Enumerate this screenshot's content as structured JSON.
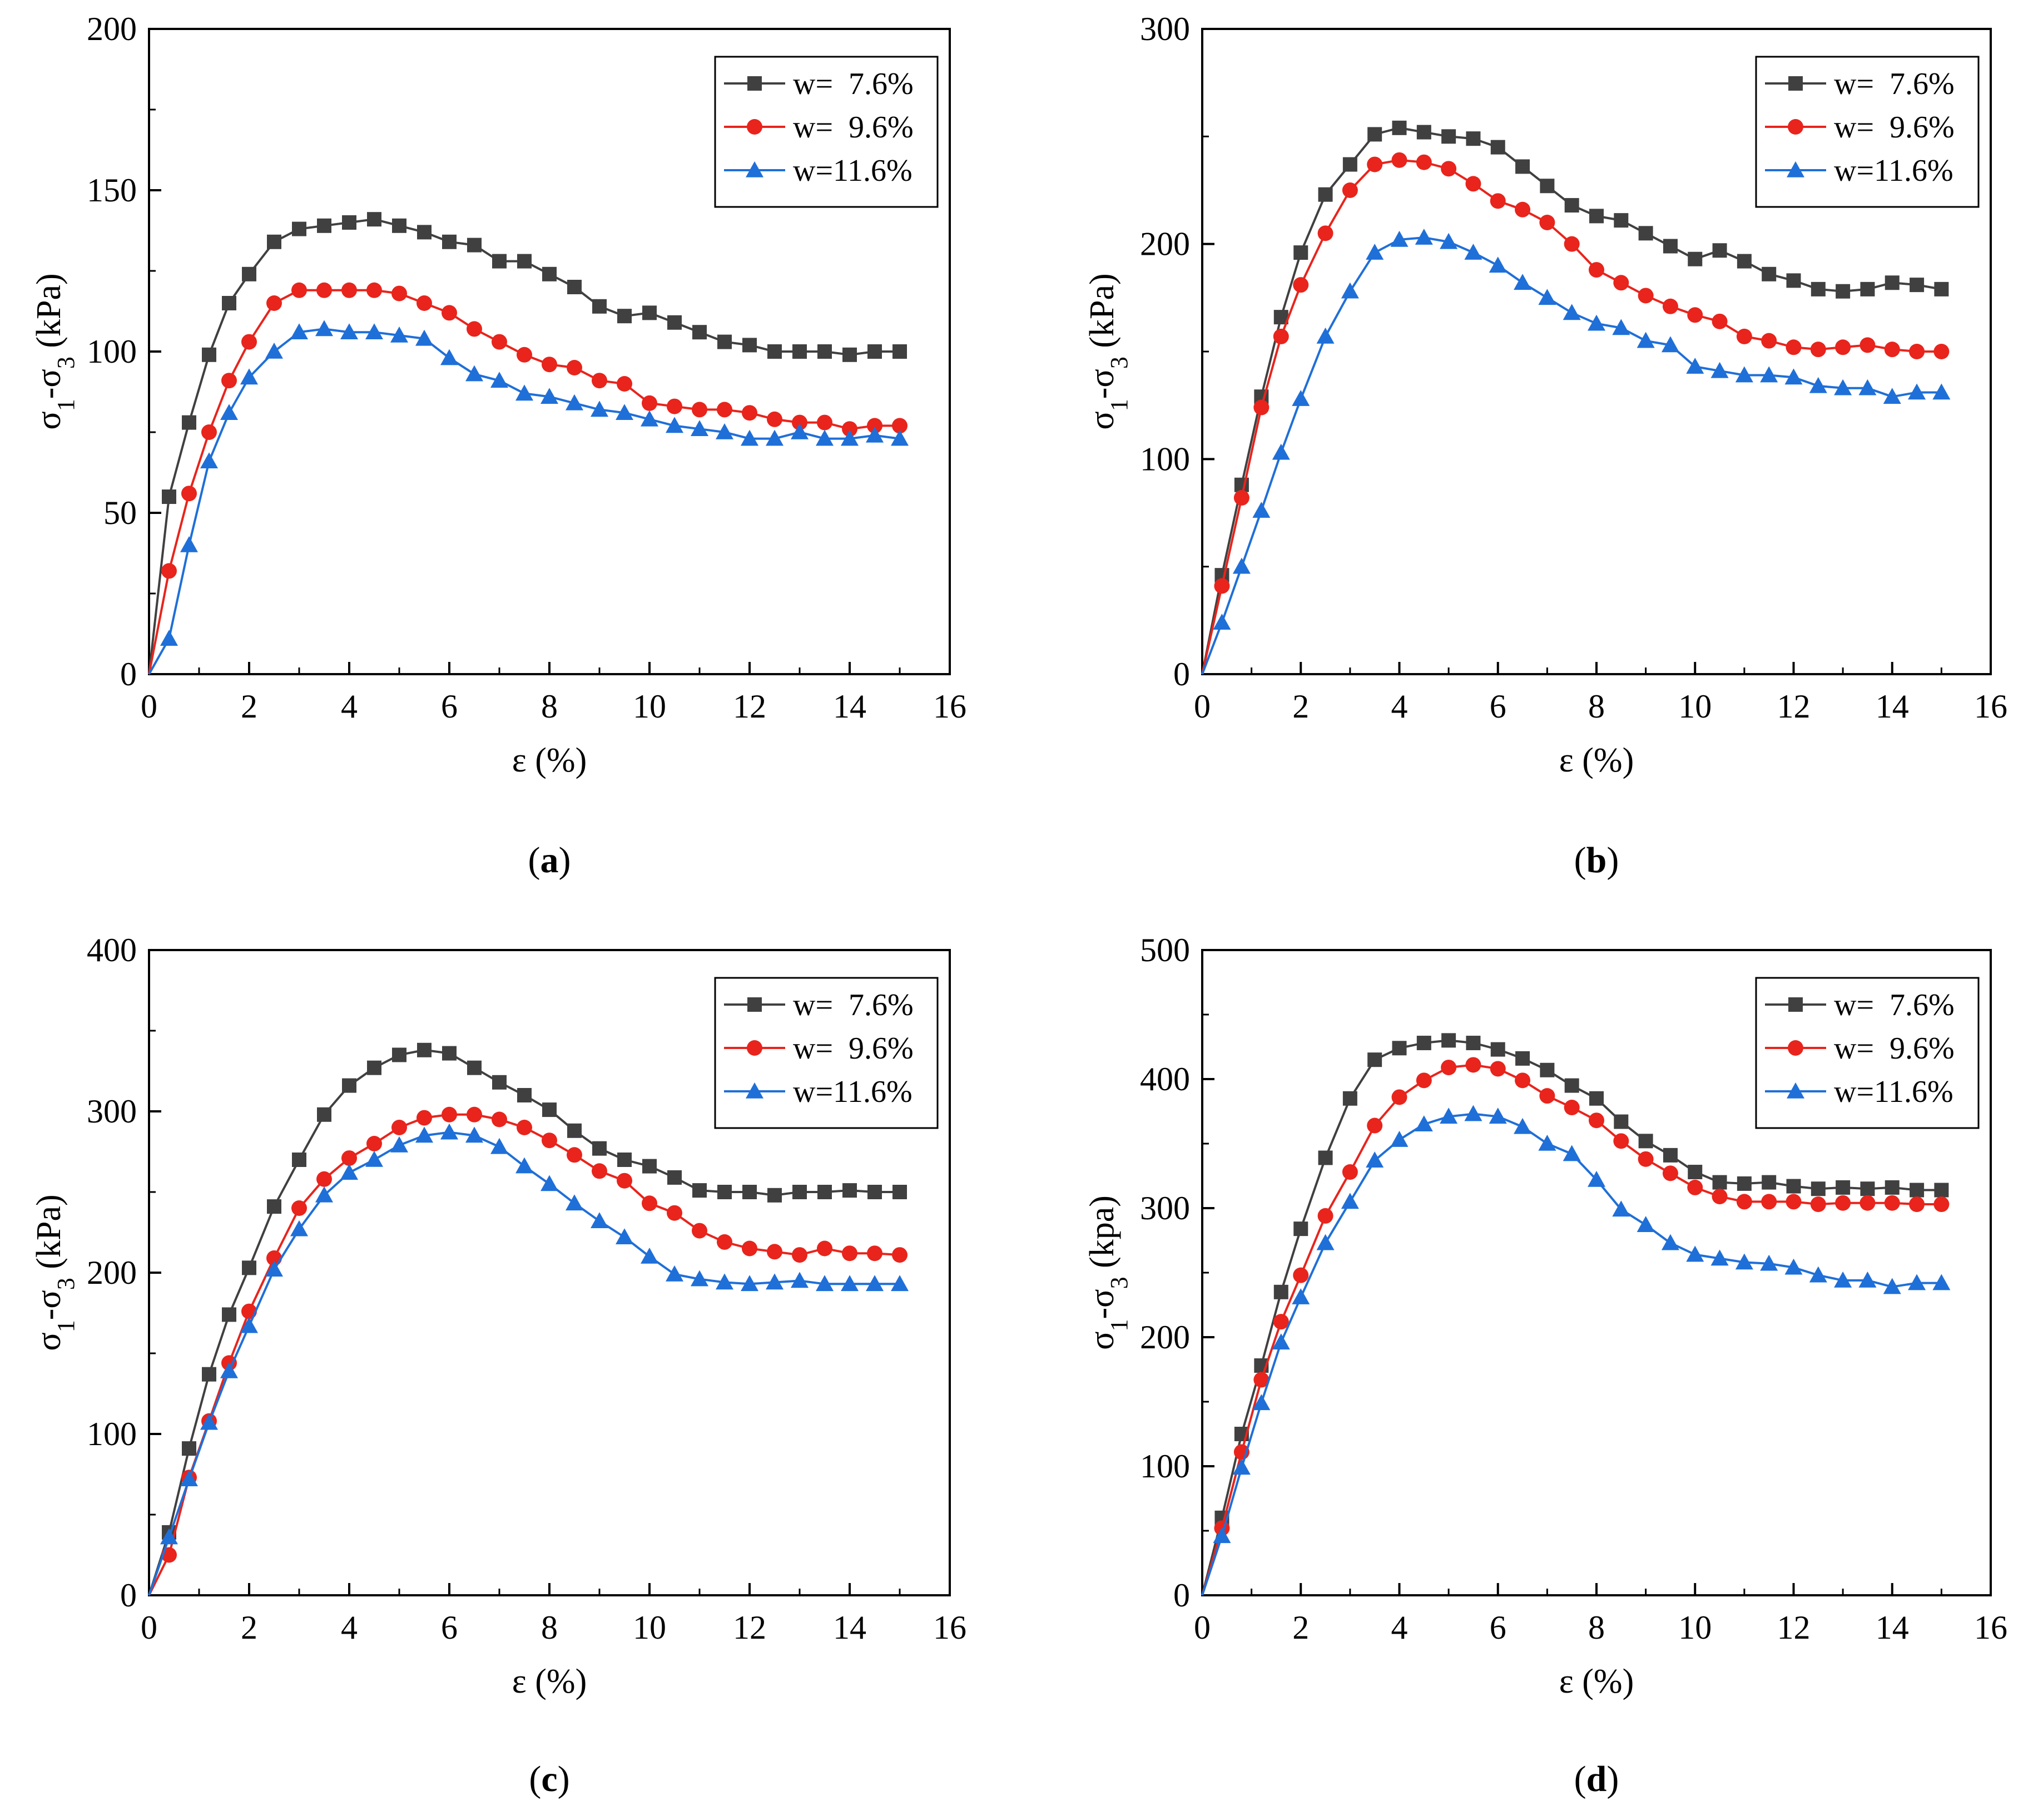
{
  "figure": {
    "panel_labels": [
      "(a)",
      "(b)",
      "(c)",
      "(d)"
    ]
  },
  "chart_data": [
    {
      "type": "line",
      "panel": "(a)",
      "xlabel": "ε (%)",
      "ylabel": "σ1-σ3 (kPa)",
      "xlim": [
        0,
        16
      ],
      "ylim": [
        0,
        200
      ],
      "xticks": [
        0,
        2,
        4,
        6,
        8,
        10,
        12,
        14,
        16
      ],
      "yticks": [
        0,
        50,
        100,
        150,
        200
      ],
      "legend": {
        "position": "top-right",
        "entries": [
          "w=  7.6%",
          "w=  9.6%",
          "w=11.6%"
        ]
      },
      "x": [
        0,
        0.4,
        0.8,
        1.2,
        1.6,
        2.0,
        2.5,
        3.0,
        3.5,
        4.0,
        4.5,
        5.0,
        5.5,
        6.0,
        6.5,
        7.0,
        7.5,
        8.0,
        8.5,
        9.0,
        9.5,
        10.0,
        10.5,
        11.0,
        11.5,
        12.0,
        12.5,
        13.0,
        13.5,
        14.0,
        14.5,
        15.0
      ],
      "series": [
        {
          "name": "w=  7.6%",
          "color": "#404040",
          "marker": "square",
          "values": [
            0,
            55,
            78,
            99,
            115,
            124,
            134,
            138,
            139,
            140,
            141,
            139,
            137,
            134,
            133,
            128,
            128,
            124,
            120,
            114,
            111,
            112,
            109,
            106,
            103,
            102,
            100,
            100,
            100,
            99,
            100,
            100
          ]
        },
        {
          "name": "w=  9.6%",
          "color": "#e8241c",
          "marker": "circle",
          "values": [
            0,
            32,
            56,
            75,
            91,
            103,
            115,
            119,
            119,
            119,
            119,
            118,
            115,
            112,
            107,
            103,
            99,
            96,
            95,
            91,
            90,
            84,
            83,
            82,
            82,
            81,
            79,
            78,
            78,
            76,
            77,
            77
          ]
        },
        {
          "name": "w=11.6%",
          "color": "#1f6fd8",
          "marker": "triangle",
          "values": [
            0,
            11,
            40,
            66,
            81,
            92,
            100,
            106,
            107,
            106,
            106,
            105,
            104,
            98,
            93,
            91,
            87,
            86,
            84,
            82,
            81,
            79,
            77,
            76,
            75,
            73,
            73,
            75,
            73,
            73,
            74,
            73
          ]
        }
      ]
    },
    {
      "type": "line",
      "panel": "(b)",
      "xlabel": "ε (%)",
      "ylabel": "σ1-σ3 (kPa)",
      "xlim": [
        0,
        16
      ],
      "ylim": [
        0,
        300
      ],
      "xticks": [
        0,
        2,
        4,
        6,
        8,
        10,
        12,
        14,
        16
      ],
      "yticks": [
        0,
        100,
        200,
        300
      ],
      "legend": {
        "position": "top-right",
        "entries": [
          "w=  7.6%",
          "w=  9.6%",
          "w=11.6%"
        ]
      },
      "x": [
        0,
        0.4,
        0.8,
        1.2,
        1.6,
        2.0,
        2.5,
        3.0,
        3.5,
        4.0,
        4.5,
        5.0,
        5.5,
        6.0,
        6.5,
        7.0,
        7.5,
        8.0,
        8.5,
        9.0,
        9.5,
        10.0,
        10.5,
        11.0,
        11.5,
        12.0,
        12.5,
        13.0,
        13.5,
        14.0,
        14.5,
        15.0
      ],
      "series": [
        {
          "name": "w=  7.6%",
          "color": "#404040",
          "marker": "square",
          "values": [
            0,
            46,
            88,
            129,
            166,
            196,
            223,
            237,
            251,
            254,
            252,
            250,
            249,
            245,
            236,
            227,
            218,
            213,
            211,
            205,
            199,
            193,
            197,
            192,
            186,
            183,
            179,
            178,
            179,
            182,
            181,
            179
          ]
        },
        {
          "name": "w=  9.6%",
          "color": "#e8241c",
          "marker": "circle",
          "values": [
            0,
            41,
            82,
            124,
            157,
            181,
            205,
            225,
            237,
            239,
            238,
            235,
            228,
            220,
            216,
            210,
            200,
            188,
            182,
            176,
            171,
            167,
            164,
            157,
            155,
            152,
            151,
            152,
            153,
            151,
            150,
            150
          ]
        },
        {
          "name": "w=11.6%",
          "color": "#1f6fd8",
          "marker": "triangle",
          "values": [
            0,
            24,
            50,
            76,
            103,
            128,
            157,
            178,
            196,
            202,
            203,
            201,
            196,
            190,
            182,
            175,
            168,
            163,
            161,
            155,
            153,
            143,
            141,
            139,
            139,
            138,
            134,
            133,
            133,
            129,
            131,
            131
          ]
        }
      ]
    },
    {
      "type": "line",
      "panel": "(c)",
      "xlabel": "ε (%)",
      "ylabel": "σ1-σ3 (kPa)",
      "xlim": [
        0,
        16
      ],
      "ylim": [
        0,
        400
      ],
      "xticks": [
        0,
        2,
        4,
        6,
        8,
        10,
        12,
        14,
        16
      ],
      "yticks": [
        0,
        100,
        200,
        300,
        400
      ],
      "legend": {
        "position": "top-right",
        "entries": [
          "w=  7.6%",
          "w=  9.6%",
          "w=11.6%"
        ]
      },
      "x": [
        0,
        0.4,
        0.8,
        1.2,
        1.6,
        2.0,
        2.5,
        3.0,
        3.5,
        4.0,
        4.5,
        5.0,
        5.5,
        6.0,
        6.5,
        7.0,
        7.5,
        8.0,
        8.5,
        9.0,
        9.5,
        10.0,
        10.5,
        11.0,
        11.5,
        12.0,
        12.5,
        13.0,
        13.5,
        14.0,
        14.5,
        15.0
      ],
      "series": [
        {
          "name": "w=  7.6%",
          "color": "#404040",
          "marker": "square",
          "values": [
            0,
            39,
            91,
            137,
            174,
            203,
            241,
            270,
            298,
            316,
            327,
            335,
            338,
            336,
            327,
            318,
            310,
            301,
            288,
            277,
            270,
            266,
            259,
            251,
            250,
            250,
            248,
            250,
            250,
            251,
            250,
            250
          ]
        },
        {
          "name": "w=  9.6%",
          "color": "#e8241c",
          "marker": "circle",
          "values": [
            0,
            25,
            73,
            108,
            144,
            176,
            209,
            240,
            258,
            271,
            280,
            290,
            296,
            298,
            298,
            295,
            290,
            282,
            273,
            263,
            257,
            243,
            237,
            226,
            219,
            215,
            213,
            211,
            215,
            212,
            212,
            211
          ]
        },
        {
          "name": "w=11.6%",
          "color": "#1f6fd8",
          "marker": "triangle",
          "values": [
            0,
            36,
            72,
            107,
            139,
            167,
            202,
            227,
            248,
            262,
            270,
            279,
            285,
            287,
            285,
            278,
            266,
            255,
            243,
            232,
            222,
            210,
            199,
            196,
            194,
            193,
            194,
            195,
            193,
            193,
            193,
            193
          ]
        }
      ]
    },
    {
      "type": "line",
      "panel": "(d)",
      "xlabel": "ε (%)",
      "ylabel": "σ1-σ3 (kpa)",
      "xlim": [
        0,
        16
      ],
      "ylim": [
        0,
        500
      ],
      "xticks": [
        0,
        2,
        4,
        6,
        8,
        10,
        12,
        14,
        16
      ],
      "yticks": [
        0,
        100,
        200,
        300,
        400,
        500
      ],
      "legend": {
        "position": "top-right",
        "entries": [
          "w=  7.6%",
          "w=  9.6%",
          "w=11.6%"
        ]
      },
      "x": [
        0,
        0.4,
        0.8,
        1.2,
        1.6,
        2.0,
        2.5,
        3.0,
        3.5,
        4.0,
        4.5,
        5.0,
        5.5,
        6.0,
        6.5,
        7.0,
        7.5,
        8.0,
        8.5,
        9.0,
        9.5,
        10.0,
        10.5,
        11.0,
        11.5,
        12.0,
        12.5,
        13.0,
        13.5,
        14.0,
        14.5,
        15.0
      ],
      "series": [
        {
          "name": "w=  7.6%",
          "color": "#404040",
          "marker": "square",
          "values": [
            0,
            60,
            125,
            178,
            235,
            284,
            339,
            385,
            415,
            424,
            428,
            430,
            428,
            423,
            416,
            407,
            395,
            385,
            367,
            352,
            341,
            328,
            320,
            319,
            320,
            317,
            315,
            316,
            315,
            316,
            314,
            314
          ]
        },
        {
          "name": "w=  9.6%",
          "color": "#e8241c",
          "marker": "circle",
          "values": [
            0,
            52,
            111,
            167,
            212,
            248,
            294,
            328,
            364,
            386,
            399,
            409,
            411,
            408,
            399,
            387,
            378,
            368,
            352,
            338,
            327,
            316,
            309,
            305,
            305,
            305,
            303,
            304,
            304,
            304,
            303,
            303
          ]
        },
        {
          "name": "w=11.6%",
          "color": "#1f6fd8",
          "marker": "triangle",
          "values": [
            0,
            46,
            99,
            149,
            196,
            231,
            273,
            305,
            337,
            353,
            365,
            371,
            373,
            371,
            363,
            350,
            342,
            322,
            299,
            287,
            273,
            264,
            261,
            258,
            257,
            254,
            248,
            244,
            244,
            239,
            242,
            242
          ]
        }
      ]
    }
  ]
}
